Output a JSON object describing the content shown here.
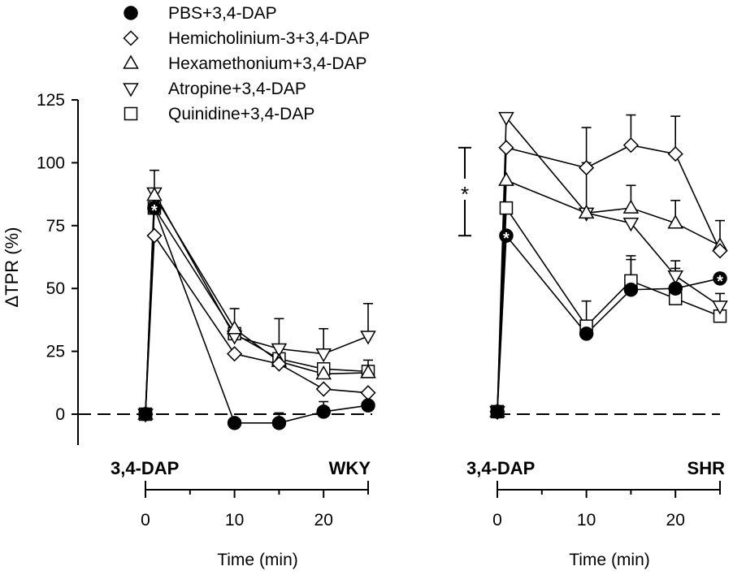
{
  "chart_data": {
    "type": "line",
    "ylabel": "ΔTPR (%)",
    "ylim": [
      -12,
      130
    ],
    "yticks": [
      0,
      25,
      50,
      75,
      100,
      125
    ],
    "xlabel": "Time (min)",
    "xlim": [
      -1,
      25
    ],
    "xticks": [
      0,
      10,
      20
    ],
    "legend": {
      "placement": "top-left",
      "entries": [
        {
          "series": "PBS+3,4-DAP",
          "marker": "circle"
        },
        {
          "series": "Hemicholinium-3+3,4-DAP",
          "marker": "diamond"
        },
        {
          "series": "Hexamethonium+3,4-DAP",
          "marker": "triangle-up"
        },
        {
          "series": "Atropine+3,4-DAP",
          "marker": "triangle-down"
        },
        {
          "series": "Quinidine+3,4-DAP",
          "marker": "square"
        }
      ]
    },
    "panels": [
      {
        "strain": "WKY",
        "injection_label": "3,4-DAP",
        "x": [
          0,
          1,
          10,
          15,
          20,
          25
        ],
        "series": [
          {
            "name": "PBS+3,4-DAP",
            "marker": "circle",
            "fill": "black",
            "values": [
              0,
              82,
              -3.5,
              -3.5,
              1,
              3.5
            ],
            "error": [
              0,
              15,
              0,
              4,
              4,
              4
            ],
            "sig": [
              false,
              true,
              false,
              false,
              false,
              false
            ]
          },
          {
            "name": "Hemicholinium-3+3,4-DAP",
            "marker": "diamond",
            "fill": "white",
            "values": [
              0,
              71,
              24,
              20,
              10,
              8.5
            ],
            "error": [
              0,
              0,
              0,
              0,
              0,
              0
            ],
            "sig": [
              false,
              false,
              false,
              false,
              false,
              false
            ]
          },
          {
            "name": "Hexamethonium+3,4-DAP",
            "marker": "triangle-up",
            "fill": "white",
            "values": [
              0,
              87,
              34,
              21,
              16,
              16.5
            ],
            "error": [
              0,
              0,
              8,
              0,
              0,
              5
            ],
            "sig": [
              false,
              false,
              false,
              false,
              false,
              false
            ]
          },
          {
            "name": "Atropine+3,4-DAP",
            "marker": "triangle-down",
            "fill": "white",
            "values": [
              0,
              88,
              31,
              26,
              24,
              31
            ],
            "error": [
              0,
              0,
              0,
              12,
              10,
              13
            ],
            "sig": [
              false,
              false,
              false,
              false,
              false,
              false
            ]
          },
          {
            "name": "Quinidine+3,4-DAP",
            "marker": "square",
            "fill": "white",
            "values": [
              0,
              82,
              32,
              22,
              18,
              17
            ],
            "error": [
              0,
              0,
              0,
              0,
              0,
              0
            ],
            "sig": [
              false,
              false,
              false,
              false,
              false,
              false
            ]
          }
        ]
      },
      {
        "strain": "SHR",
        "injection_label": "3,4-DAP",
        "x": [
          0,
          1,
          10,
          15,
          20,
          25
        ],
        "sig_bracket": {
          "range": [
            71,
            106
          ],
          "label": "*"
        },
        "series": [
          {
            "name": "PBS+3,4-DAP",
            "marker": "circle",
            "fill": "black",
            "values": [
              1,
              71,
              32,
              49.5,
              50,
              54
            ],
            "error": [
              0,
              0,
              0,
              12,
              8,
              0
            ],
            "sig": [
              false,
              true,
              false,
              false,
              false,
              true
            ]
          },
          {
            "name": "Hemicholinium-3+3,4-DAP",
            "marker": "diamond",
            "fill": "white",
            "values": [
              1,
              106,
              98,
              107,
              103.5,
              65
            ],
            "error": [
              0,
              0,
              16,
              12,
              15,
              12
            ],
            "sig": [
              false,
              false,
              false,
              false,
              false,
              false
            ]
          },
          {
            "name": "Hexamethonium+3,4-DAP",
            "marker": "triangle-up",
            "fill": "white",
            "values": [
              1,
              93,
              80,
              82,
              76,
              67
            ],
            "error": [
              0,
              0,
              0,
              9,
              9,
              0
            ],
            "sig": [
              false,
              false,
              false,
              false,
              false,
              false
            ]
          },
          {
            "name": "Atropine+3,4-DAP",
            "marker": "triangle-down",
            "fill": "white",
            "values": [
              1,
              118,
              80,
              76,
              55,
              43
            ],
            "error": [
              0,
              0,
              20,
              0,
              6,
              0
            ],
            "sig": [
              false,
              false,
              false,
              false,
              false,
              false
            ]
          },
          {
            "name": "Quinidine+3,4-DAP",
            "marker": "square",
            "fill": "white",
            "values": [
              1,
              82,
              35,
              53,
              46,
              39
            ],
            "error": [
              0,
              0,
              10,
              10,
              0,
              9
            ],
            "sig": [
              false,
              false,
              false,
              false,
              false,
              false
            ]
          }
        ]
      }
    ]
  }
}
